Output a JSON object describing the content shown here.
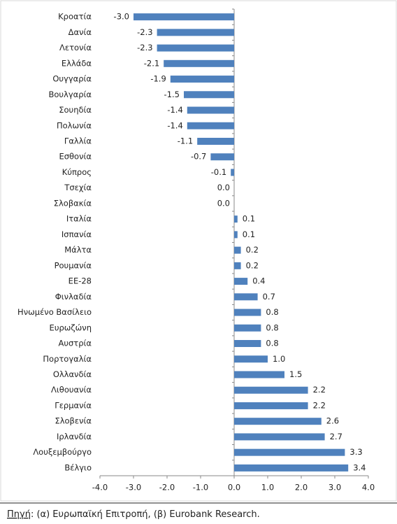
{
  "chart_data": {
    "type": "bar",
    "orientation": "horizontal",
    "categories": [
      "Κροατία",
      "Δανία",
      "Λετονία",
      "Ελλάδα",
      "Ουγγαρία",
      "Βουλγαρία",
      "Σουηδία",
      "Πολωνία",
      "Γαλλία",
      "Εσθονία",
      "Κύπρος",
      "Τσεχία",
      "Σλοβακία",
      "Ιταλία",
      "Ισπανία",
      "Μάλτα",
      "Ρουμανία",
      "ΕΕ-28",
      "Φινλαδία",
      "Ηνωμένο Βασίλειο",
      "Ευρωζώνη",
      "Αυστρία",
      "Πορτογαλία",
      "Ολλανδία",
      "Λιθουανία",
      "Γερμανία",
      "Σλοβενία",
      "Ιρλανδία",
      "Λουξεμβούργο",
      "Βέλγιο"
    ],
    "values": [
      -3.0,
      -2.3,
      -2.3,
      -2.1,
      -1.9,
      -1.5,
      -1.4,
      -1.4,
      -1.1,
      -0.7,
      -0.1,
      0.0,
      0.0,
      0.1,
      0.1,
      0.2,
      0.2,
      0.4,
      0.7,
      0.8,
      0.8,
      0.8,
      1.0,
      1.5,
      2.2,
      2.2,
      2.6,
      2.7,
      3.3,
      3.4
    ],
    "value_labels": [
      "-3.0",
      "-2.3",
      "-2.3",
      "-2.1",
      "-1.9",
      "-1.5",
      "-1.4",
      "-1.4",
      "-1.1",
      "-0.7",
      "-0.1",
      "0.0",
      "0.0",
      "0.1",
      "0.1",
      "0.2",
      "0.2",
      "0.4",
      "0.7",
      "0.8",
      "0.8",
      "0.8",
      "1.0",
      "1.5",
      "2.2",
      "2.2",
      "2.6",
      "2.7",
      "3.3",
      "3.4"
    ],
    "color": "#4f81bd",
    "xlim": [
      -4,
      4
    ],
    "xticks": [
      {
        "value": -4,
        "label": "-4.0"
      },
      {
        "value": -3,
        "label": "-3.0"
      },
      {
        "value": -2,
        "label": "-2.0"
      },
      {
        "value": -1,
        "label": "-1.0"
      },
      {
        "value": 0,
        "label": "0.0"
      },
      {
        "value": 1,
        "label": "1.0"
      },
      {
        "value": 2,
        "label": "2.0"
      },
      {
        "value": 3,
        "label": "3.0"
      },
      {
        "value": 4,
        "label": "4.0"
      }
    ],
    "source_label": "Πηγή",
    "source_text": ": (α) Ευρωπαϊκή Επιτροπή, (β) Eurobank Research."
  }
}
